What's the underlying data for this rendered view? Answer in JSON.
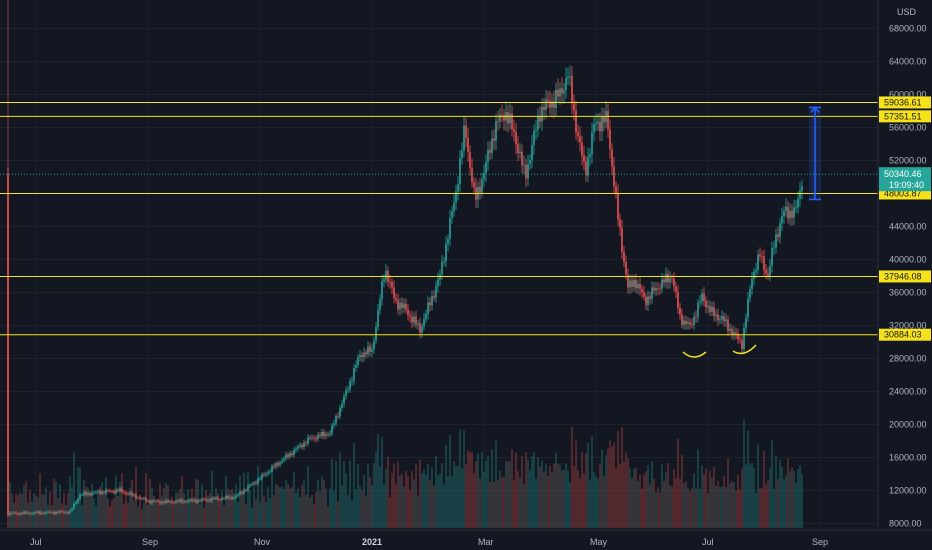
{
  "currency": "USD",
  "colors": {
    "background": "#131722",
    "grid": "#1e222d",
    "up": "#26a69a",
    "down": "#ef5350",
    "level_line": "#f5e21b",
    "current_tag": "#26a69a",
    "measure": "#2962ff"
  },
  "price_axis": {
    "labels": [
      "68000.00",
      "64000.00",
      "60000.00",
      "56000.00",
      "52000.00",
      "48000.00",
      "44000.00",
      "40000.00",
      "36000.00",
      "32000.00",
      "28000.00",
      "24000.00",
      "20000.00",
      "16000.00",
      "12000.00",
      "8000.00"
    ]
  },
  "time_axis": {
    "labels": [
      {
        "text": "Jul",
        "bold": false
      },
      {
        "text": "Sep",
        "bold": false
      },
      {
        "text": "Nov",
        "bold": false
      },
      {
        "text": "2021",
        "bold": true
      },
      {
        "text": "Mar",
        "bold": false
      },
      {
        "text": "May",
        "bold": false
      },
      {
        "text": "Jul",
        "bold": false
      },
      {
        "text": "Sep",
        "bold": false
      }
    ]
  },
  "levels": [
    {
      "label": "59036.61",
      "value": 59036.61
    },
    {
      "label": "57351.51",
      "value": 57351.51
    },
    {
      "label": "48003.87",
      "value": 48003.87
    },
    {
      "label": "37946.08",
      "value": 37946.08
    },
    {
      "label": "30884.03",
      "value": 30884.03
    }
  ],
  "current": {
    "price": "50340.46",
    "countdown": "19:09:40",
    "value": 50340.46
  },
  "chart_data": {
    "type": "candlestick",
    "currency": "USD",
    "y_axis": {
      "min": 8000,
      "max": 68000,
      "scale": "linear"
    },
    "x_axis_months": [
      "Jul",
      "Sep",
      "Nov",
      "2021",
      "Mar",
      "May",
      "Jul",
      "Sep"
    ],
    "approx_close_path": [
      {
        "month": "Jul 2020",
        "price": 9200
      },
      {
        "month": "Aug 2020",
        "price": 11500
      },
      {
        "month": "Sep 2020",
        "price": 10700
      },
      {
        "month": "Oct 2020",
        "price": 13500
      },
      {
        "month": "Nov 2020",
        "price": 18000
      },
      {
        "month": "Dec 2020",
        "price": 29000
      },
      {
        "month": "Jan 2021",
        "price": 33000
      },
      {
        "month": "Feb 2021",
        "price": 46000
      },
      {
        "month": "Mar 2021",
        "price": 58000
      },
      {
        "month": "Apr 2021",
        "price": 57000
      },
      {
        "month": "May 2021",
        "price": 37000
      },
      {
        "month": "Jun 2021",
        "price": 35000
      },
      {
        "month": "Jul 2021",
        "price": 41500
      },
      {
        "month": "Aug 2021",
        "price": 50340
      }
    ],
    "all_time_high": 64800,
    "grid": true,
    "volume_histogram": true
  }
}
